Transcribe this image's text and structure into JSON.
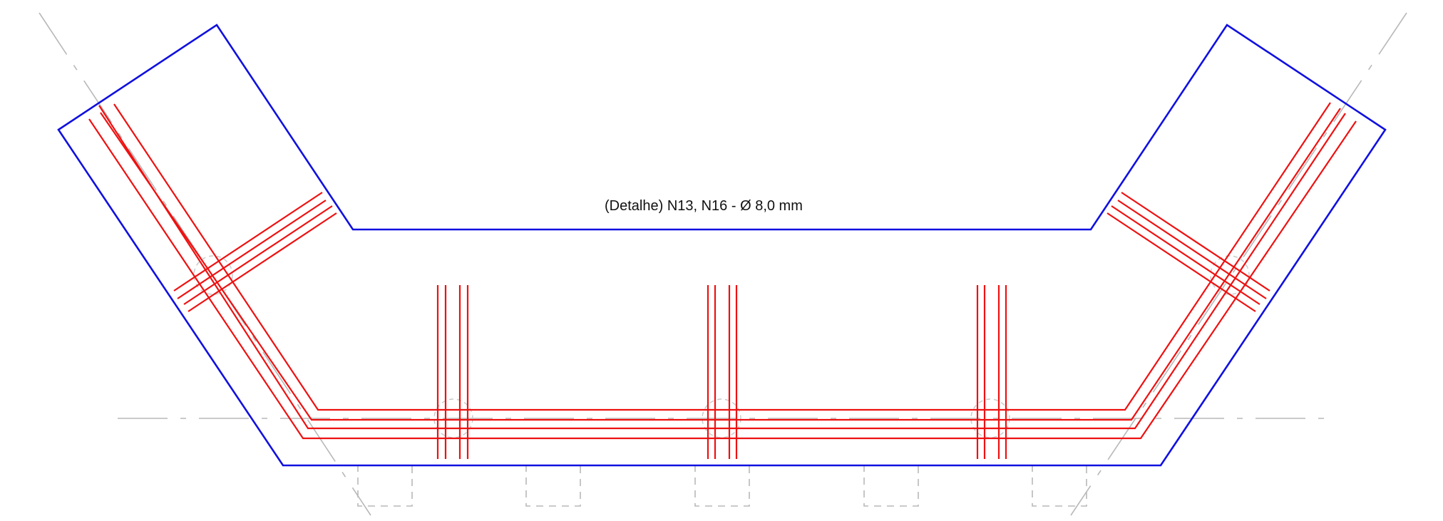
{
  "caption": "(Detalhe) N13, N16 - Ø 8,0 mm",
  "colors": {
    "outline": "#1010e0",
    "rebar": "#ee1111",
    "construction_lines": "#b8b8b8"
  }
}
